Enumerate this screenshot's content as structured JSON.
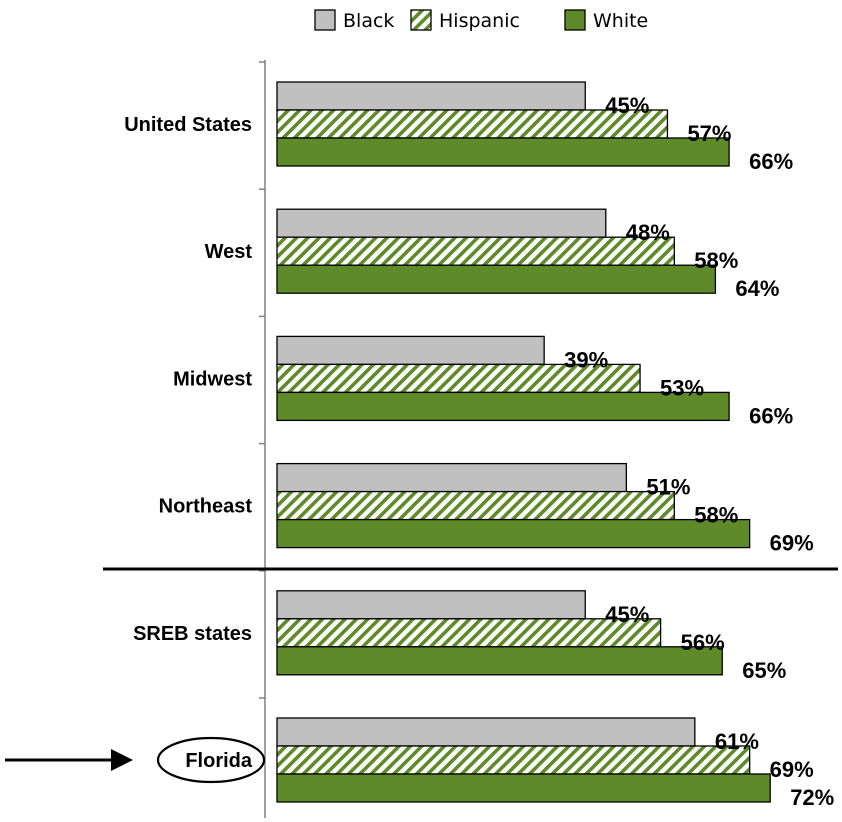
{
  "chart_data": {
    "type": "bar",
    "orientation": "horizontal",
    "categories": [
      "United States",
      "West",
      "Midwest",
      "Northeast",
      "SREB states",
      "Florida"
    ],
    "series": [
      {
        "name": "Black",
        "values": [
          45,
          48,
          39,
          51,
          45,
          61
        ],
        "labels": [
          "45%",
          "48%",
          "39%",
          "51%",
          "45%",
          "61%"
        ],
        "color": "#c0c0c0",
        "pattern": "solid"
      },
      {
        "name": "Hispanic",
        "values": [
          57,
          58,
          53,
          58,
          56,
          69
        ],
        "labels": [
          "57%",
          "58%",
          "53%",
          "58%",
          "56%",
          "69%"
        ],
        "color": "#5e8a2a",
        "pattern": "diagonal-hatch"
      },
      {
        "name": "White",
        "values": [
          66,
          64,
          66,
          69,
          65,
          72
        ],
        "labels": [
          "66%",
          "64%",
          "66%",
          "69%",
          "65%",
          "72%"
        ],
        "color": "#5e8a2a",
        "pattern": "solid"
      }
    ],
    "value_unit": "%",
    "xlim": [
      0,
      72
    ],
    "grid": false,
    "legend": "top",
    "annotations": {
      "separator_after_category": "Northeast",
      "highlighted_category": "Florida",
      "highlight_style": "circled-with-arrow"
    }
  }
}
